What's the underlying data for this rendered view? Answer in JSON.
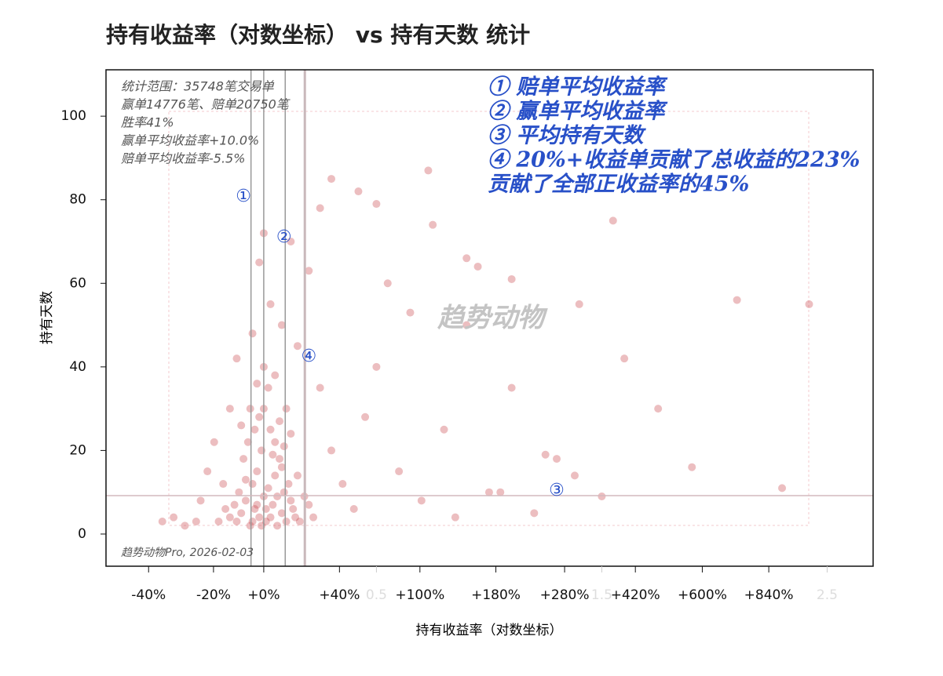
{
  "chart_data": {
    "type": "scatter",
    "title": "持有收益率（对数坐标） vs 持有天数 统计",
    "x_label": "持有收益率（对数坐标）",
    "y_label": "持有天数",
    "stats": [
      "统计范围：35748笔交易单",
      "赢单14776笔、赔单20750笔",
      "胜率41%",
      "赢单平均收益率+10.0%",
      "赔单平均收益率-5.5%"
    ],
    "notes": [
      "① 赔单平均收益率",
      "② 赢单平均收益率",
      "③ 平均持有天数",
      "④ 20%+收益单贡献了总收益的223%",
      "贡献了全部正收益率的45%"
    ],
    "markers": [
      {
        "text": "①",
        "x": -0.09,
        "y": 80.7
      },
      {
        "text": "②",
        "x": 0.09,
        "y": 70.9
      },
      {
        "text": "③",
        "x": 1.3,
        "y": 10.3
      },
      {
        "text": "④",
        "x": 0.2,
        "y": 42.4
      }
    ],
    "watermark": "趋势动物",
    "footer": "趋势动物Pro, 2026-02-03",
    "color": "#c8464b",
    "vlines": [
      -0.0566,
      0,
      0.0953,
      0.1823
    ],
    "hline": 9.2,
    "xlim": [
      -0.7,
      2.704
    ],
    "ylim": [
      -7.7,
      111.1
    ],
    "yticks": [
      0,
      20,
      40,
      60,
      80,
      100
    ],
    "xticks": [
      {
        "value": -0.511,
        "label": "-40%"
      },
      {
        "value": -0.223,
        "label": "-20%"
      },
      {
        "value": 0,
        "label": "+0%"
      },
      {
        "value": 0.336,
        "label": "+40%"
      },
      {
        "value": 0.693,
        "label": "+100%"
      },
      {
        "value": 1.03,
        "label": "+180%"
      },
      {
        "value": 1.335,
        "label": "+280%"
      },
      {
        "value": 1.649,
        "label": "+420%"
      },
      {
        "value": 1.946,
        "label": "+600%"
      },
      {
        "value": 2.241,
        "label": "+840%"
      }
    ],
    "x2ticks": [
      0.5,
      1.5,
      2.5
    ],
    "x": [
      -0.12,
      -0.1,
      -0.08,
      -0.06,
      -0.05,
      -0.04,
      -0.03,
      -0.02,
      -0.01,
      0,
      0.01,
      0.02,
      0.03,
      0.04,
      0.05,
      0.06,
      0.07,
      0.08,
      0.09,
      0.1,
      0.12,
      0.14,
      -0.09,
      -0.07,
      -0.11,
      -0.13,
      -0.15,
      0,
      0.02,
      -0.02,
      0.05,
      0.08,
      0.11,
      0.13,
      0.16,
      0.18,
      -0.05,
      -0.03,
      0.01,
      0.03,
      -0.08,
      0.06,
      -0.01,
      0.04,
      0.07,
      -0.04,
      0.09,
      -0.06,
      0.15,
      0.12,
      -0.17,
      -0.2,
      -0.18,
      0.2,
      0.22,
      0.1,
      -0.1,
      0,
      0.05,
      -0.03,
      -0.3,
      -0.35,
      -0.28,
      -0.25,
      -0.22,
      -0.4,
      -0.45,
      -0.15,
      -0.12,
      -0.05,
      0.03,
      0.08,
      0.15,
      0.25,
      0.3,
      0.35,
      0.4,
      0.45,
      0.5,
      0.55,
      0.6,
      0.7,
      0.8,
      0.9,
      1.0,
      1.1,
      1.2,
      1.3,
      1.4,
      1.5,
      1.6,
      1.75,
      1.9,
      2.1,
      2.3,
      2.42,
      1.1,
      0.9,
      0.75,
      0.5,
      0.42,
      0.73,
      0.3,
      0.25,
      0.12,
      0,
      -0.02,
      0.2,
      0.65,
      1.55,
      0.95,
      1.25,
      1.38,
      1.05,
      0.85
    ],
    "values": [
      3,
      5,
      8,
      2,
      12,
      6,
      15,
      4,
      20,
      9,
      3,
      11,
      25,
      7,
      14,
      2,
      18,
      5,
      10,
      3,
      8,
      4,
      18,
      22,
      10,
      7,
      4,
      30,
      35,
      28,
      22,
      16,
      12,
      6,
      3,
      9,
      3,
      7,
      6,
      4,
      13,
      9,
      2,
      19,
      27,
      25,
      21,
      30,
      14,
      24,
      6,
      3,
      12,
      7,
      4,
      30,
      26,
      40,
      38,
      36,
      3,
      2,
      8,
      15,
      22,
      4,
      3,
      30,
      42,
      48,
      55,
      50,
      45,
      35,
      20,
      12,
      6,
      28,
      40,
      60,
      15,
      8,
      25,
      50,
      10,
      35,
      5,
      18,
      55,
      9,
      42,
      30,
      16,
      56,
      11,
      55,
      61,
      66,
      74,
      79,
      82,
      87,
      85,
      78,
      70,
      72,
      65,
      63,
      53,
      75,
      64,
      19,
      14,
      10,
      4
    ]
  }
}
